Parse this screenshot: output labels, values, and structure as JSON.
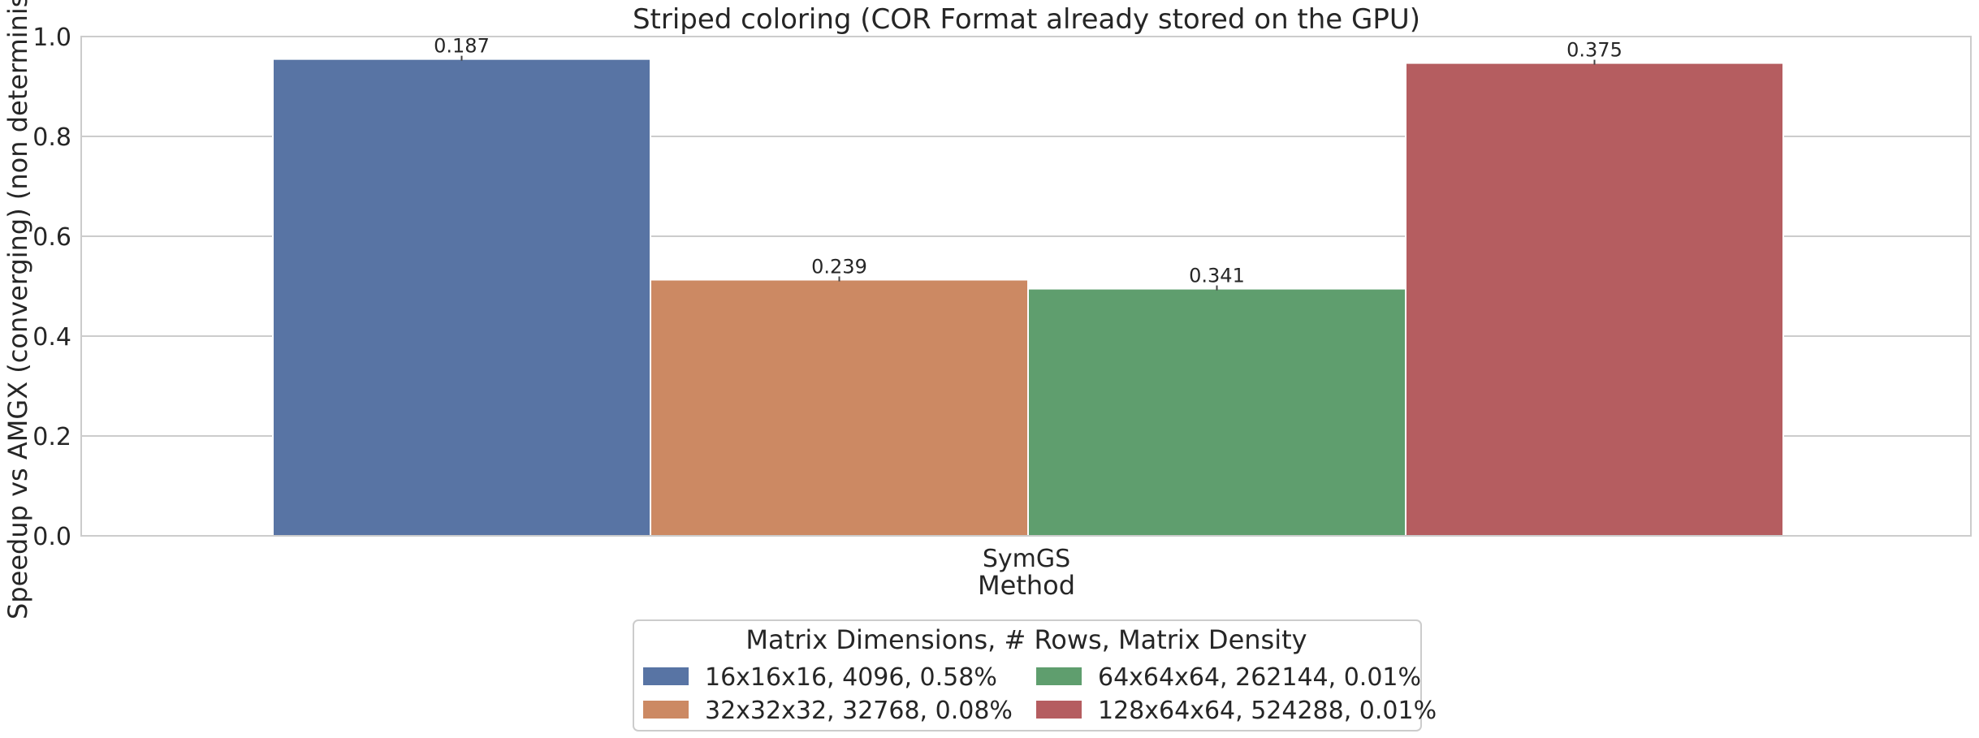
{
  "chart_data": {
    "type": "bar",
    "title": "Striped coloring (COR Format already stored on the GPU)",
    "xlabel": "Method",
    "ylabel": "Speedup vs AMGX (converging) (non deterministic)",
    "ylim": [
      0,
      1.0
    ],
    "yticks": [
      0.0,
      0.2,
      0.4,
      0.6,
      0.8,
      1.0
    ],
    "ytick_labels": [
      "0.0",
      "0.2",
      "0.4",
      "0.6",
      "0.8",
      "1.0"
    ],
    "grid": true,
    "categories": [
      "SymGS"
    ],
    "series": [
      {
        "name": "16x16x16, 4096, 0.58%",
        "values": [
          0.955
        ],
        "label": "0.187",
        "color": "#5874a4"
      },
      {
        "name": "32x32x32, 32768, 0.08%",
        "values": [
          0.513
        ],
        "label": "0.239",
        "color": "#cc8963"
      },
      {
        "name": "64x64x64, 262144, 0.01%",
        "values": [
          0.495
        ],
        "label": "0.341",
        "color": "#5f9e6e"
      },
      {
        "name": "128x64x64, 524288, 0.01%",
        "values": [
          0.947
        ],
        "label": "0.375",
        "color": "#b55d60"
      }
    ],
    "legend": {
      "title": "Matrix Dimensions, # Rows, Matrix Density",
      "placement": "bottom-center"
    }
  }
}
